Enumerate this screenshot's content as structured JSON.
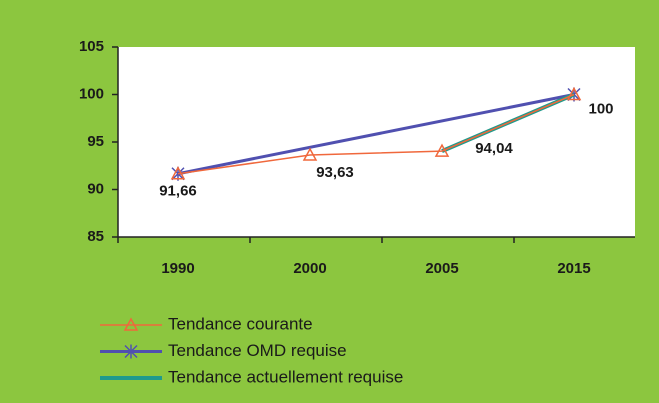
{
  "chart_data": {
    "type": "line",
    "categories": [
      "1990",
      "2000",
      "2005",
      "2015"
    ],
    "series": [
      {
        "name": "Tendance courante",
        "color": "#f0683c",
        "marker": "triangle",
        "x": [
          "1990",
          "2000",
          "2005",
          "2015"
        ],
        "values": [
          91.66,
          93.63,
          94.04,
          100
        ],
        "value_labels": [
          "91,66",
          "93,63",
          "94,04",
          "100"
        ]
      },
      {
        "name": "Tendance OMD requise",
        "color": "#5050b0",
        "marker": "star",
        "x": [
          "1990",
          "2015"
        ],
        "values": [
          91.66,
          100
        ]
      },
      {
        "name": "Tendance actuellement requise",
        "color": "#1f9a8c",
        "marker": "none",
        "x": [
          "2005",
          "2015"
        ],
        "values": [
          94.04,
          100
        ]
      }
    ],
    "ylim": [
      85,
      105
    ],
    "yticks": [
      85,
      90,
      95,
      100,
      105
    ],
    "grid": false,
    "legend": "bottom"
  }
}
